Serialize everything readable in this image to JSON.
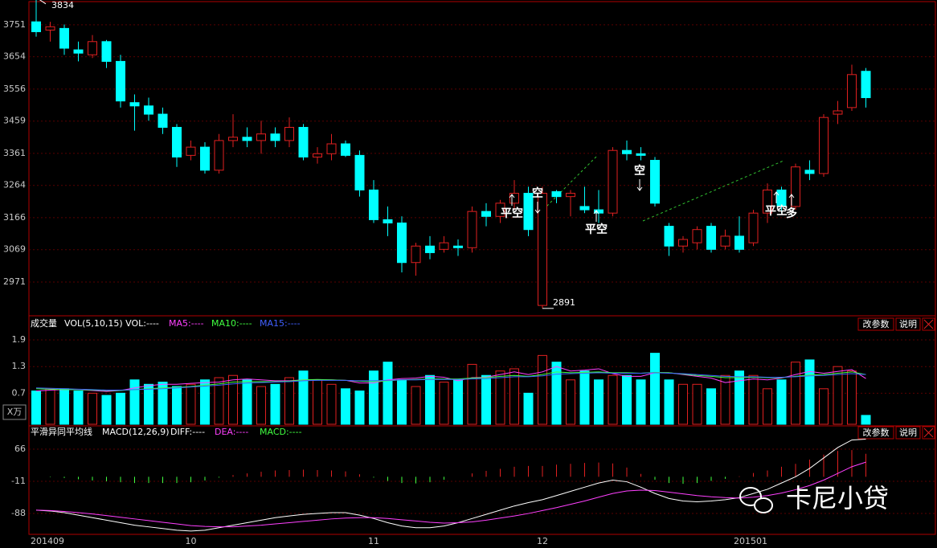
{
  "chart_data": [
    {
      "type": "candlestick",
      "open": [
        3760,
        3735,
        3740,
        3675,
        3660,
        3700,
        3640,
        3515,
        3505,
        3480,
        3440,
        3355,
        3380,
        3310,
        3400,
        3410,
        3400,
        3420,
        3400,
        3440,
        3350,
        3360,
        3390,
        3355,
        3250,
        3160,
        3150,
        3030,
        3080,
        3070,
        3080,
        3075,
        3185,
        3170,
        3210,
        3240,
        2900,
        3245,
        3230,
        3200,
        3190,
        3180,
        3370,
        3360,
        3340,
        3140,
        3080,
        3090,
        3140,
        3080,
        3110,
        3090,
        3180,
        3250,
        3200,
        3310,
        3300,
        3480,
        3500,
        3610
      ],
      "high": [
        3834,
        3760,
        3752,
        3700,
        3720,
        3705,
        3660,
        3540,
        3530,
        3500,
        3450,
        3400,
        3395,
        3420,
        3480,
        3440,
        3460,
        3440,
        3470,
        3450,
        3380,
        3420,
        3400,
        3370,
        3280,
        3200,
        3170,
        3090,
        3110,
        3110,
        3100,
        3200,
        3210,
        3220,
        3280,
        3260,
        3260,
        3250,
        3250,
        3260,
        3250,
        3380,
        3400,
        3380,
        3350,
        3150,
        3110,
        3140,
        3150,
        3130,
        3170,
        3190,
        3270,
        3260,
        3330,
        3340,
        3480,
        3520,
        3630,
        3620
      ],
      "low": [
        3715,
        3700,
        3660,
        3640,
        3650,
        3620,
        3500,
        3430,
        3460,
        3420,
        3320,
        3340,
        3300,
        3300,
        3380,
        3380,
        3360,
        3380,
        3380,
        3340,
        3330,
        3340,
        3350,
        3230,
        3150,
        3110,
        3000,
        2990,
        3040,
        3060,
        3050,
        3060,
        3140,
        3150,
        3190,
        3110,
        2891,
        3210,
        3170,
        3180,
        3150,
        3170,
        3340,
        3340,
        3200,
        3050,
        3060,
        3070,
        3060,
        3070,
        3060,
        3080,
        3150,
        3180,
        3190,
        3280,
        3290,
        3450,
        3490,
        3500
      ],
      "close": [
        3730,
        3745,
        3680,
        3665,
        3700,
        3640,
        3520,
        3505,
        3480,
        3440,
        3350,
        3380,
        3310,
        3400,
        3410,
        3400,
        3420,
        3400,
        3440,
        3350,
        3360,
        3390,
        3355,
        3250,
        3160,
        3150,
        3030,
        3080,
        3060,
        3090,
        3075,
        3185,
        3170,
        3210,
        3240,
        3130,
        3240,
        3230,
        3240,
        3190,
        3180,
        3370,
        3360,
        3355,
        3210,
        3080,
        3100,
        3130,
        3070,
        3110,
        3070,
        3180,
        3250,
        3200,
        3320,
        3300,
        3470,
        3490,
        3600,
        3530
      ],
      "colors": {
        "up": "#e02020",
        "down": "#00ffff"
      },
      "ylim": [
        2871,
        3814
      ],
      "yticks": [
        3751,
        3654,
        3556,
        3459,
        3361,
        3264,
        3166,
        3069,
        2971
      ],
      "grid": true,
      "annotations": [
        "平空",
        "空",
        "平空",
        "空",
        "平空",
        "多"
      ]
    },
    {
      "type": "volume",
      "title": "成交量",
      "subtitle": "VOL(5,10,15) VOL:----",
      "unit": "X万",
      "buttons": [
        "改参数",
        "说明"
      ],
      "values": [
        0.75,
        0.8,
        0.8,
        0.75,
        0.7,
        0.65,
        0.7,
        1.0,
        0.9,
        0.95,
        0.85,
        0.9,
        1.0,
        1.05,
        1.1,
        1.0,
        0.85,
        0.9,
        1.05,
        1.2,
        1.0,
        0.9,
        0.8,
        0.75,
        1.2,
        1.4,
        1.0,
        0.85,
        1.1,
        0.95,
        1.0,
        1.35,
        1.1,
        1.2,
        1.25,
        0.7,
        1.55,
        1.4,
        1.0,
        1.2,
        1.0,
        1.1,
        1.1,
        1.0,
        1.6,
        1.0,
        0.9,
        0.9,
        0.8,
        1.1,
        1.2,
        1.1,
        0.8,
        1.0,
        1.4,
        1.45,
        0.8,
        1.3,
        1.2,
        0.2
      ],
      "series": [
        {
          "name": "MA5:----",
          "color": "#ff40ff",
          "values": [
            0.75,
            0.77,
            0.78,
            0.78,
            0.76,
            0.74,
            0.76,
            0.82,
            0.87,
            0.9,
            0.9,
            0.92,
            0.94,
            0.95,
            1.0,
            1.02,
            1.0,
            0.98,
            0.98,
            1.0,
            1.0,
            1.0,
            0.99,
            0.93,
            0.93,
            1.0,
            1.03,
            1.04,
            1.08,
            1.06,
            0.98,
            1.05,
            1.06,
            1.12,
            1.18,
            1.12,
            1.18,
            1.3,
            1.2,
            1.22,
            1.25,
            1.14,
            1.08,
            1.08,
            1.16,
            1.16,
            1.12,
            1.08,
            1.04,
            0.94,
            0.98,
            1.02,
            1.0,
            1.04,
            1.12,
            1.19,
            1.15,
            1.19,
            1.23,
            1.03
          ]
        },
        {
          "name": "MA10:----",
          "color": "#40ff40",
          "values": [
            0.8,
            0.79,
            0.78,
            0.78,
            0.77,
            0.76,
            0.76,
            0.78,
            0.8,
            0.82,
            0.83,
            0.85,
            0.88,
            0.91,
            0.95,
            0.96,
            0.96,
            0.96,
            0.97,
            1.0,
            1.01,
            1.0,
            0.99,
            0.97,
            0.96,
            0.98,
            1.0,
            1.01,
            1.02,
            1.02,
            1.02,
            1.04,
            1.05,
            1.08,
            1.1,
            1.08,
            1.12,
            1.18,
            1.16,
            1.17,
            1.18,
            1.16,
            1.16,
            1.15,
            1.17,
            1.16,
            1.13,
            1.1,
            1.08,
            1.05,
            1.05,
            1.06,
            1.05,
            1.05,
            1.08,
            1.11,
            1.12,
            1.15,
            1.18,
            1.12
          ]
        },
        {
          "name": "MA15:----",
          "color": "#4060ff",
          "values": [
            0.82,
            0.81,
            0.8,
            0.79,
            0.78,
            0.77,
            0.77,
            0.78,
            0.79,
            0.8,
            0.82,
            0.84,
            0.86,
            0.88,
            0.91,
            0.93,
            0.94,
            0.95,
            0.96,
            0.98,
            0.99,
            0.99,
            0.99,
            0.98,
            0.98,
            0.99,
            1.0,
            1.0,
            1.01,
            1.01,
            1.01,
            1.02,
            1.03,
            1.05,
            1.07,
            1.07,
            1.09,
            1.13,
            1.14,
            1.15,
            1.16,
            1.15,
            1.15,
            1.15,
            1.16,
            1.15,
            1.14,
            1.12,
            1.1,
            1.08,
            1.07,
            1.07,
            1.06,
            1.06,
            1.07,
            1.09,
            1.1,
            1.12,
            1.14,
            1.12
          ]
        }
      ],
      "ylim": [
        0,
        2.1
      ],
      "yticks": [
        1.9,
        1.3,
        0.7
      ]
    },
    {
      "type": "macd",
      "title": "平滑异同平均线",
      "subtitle": "MACD(12,26,9)",
      "buttons": [
        "改参数",
        "说明"
      ],
      "positive_color": "#e02020",
      "series": [
        {
          "name": "DIFF:----",
          "color": "#ffffff",
          "values": [
            -80,
            -82,
            -86,
            -92,
            -98,
            -104,
            -110,
            -116,
            -120,
            -124,
            -128,
            -130,
            -128,
            -122,
            -116,
            -110,
            -104,
            -98,
            -94,
            -90,
            -88,
            -86,
            -86,
            -92,
            -100,
            -110,
            -118,
            -122,
            -122,
            -118,
            -110,
            -100,
            -90,
            -80,
            -70,
            -62,
            -55,
            -45,
            -35,
            -25,
            -15,
            -8,
            -12,
            -25,
            -40,
            -52,
            -58,
            -60,
            -58,
            -55,
            -50,
            -40,
            -30,
            -15,
            0,
            20,
            45,
            70,
            88,
            90
          ]
        },
        {
          "name": "DEA:----",
          "color": "#ff40ff",
          "values": [
            -80,
            -81,
            -83,
            -86,
            -89,
            -93,
            -97,
            -101,
            -105,
            -109,
            -113,
            -117,
            -119,
            -120,
            -120,
            -118,
            -116,
            -113,
            -110,
            -107,
            -104,
            -101,
            -99,
            -98,
            -98,
            -100,
            -103,
            -106,
            -109,
            -111,
            -110,
            -108,
            -104,
            -99,
            -94,
            -88,
            -81,
            -74,
            -66,
            -58,
            -49,
            -40,
            -34,
            -32,
            -33,
            -37,
            -41,
            -45,
            -48,
            -50,
            -51,
            -49,
            -45,
            -39,
            -31,
            -21,
            -8,
            8,
            24,
            35
          ]
        },
        {
          "name": "MACD:----",
          "color": "#40ff40",
          "values": [
            0,
            -1,
            -3,
            -6,
            -9,
            -11,
            -13,
            -15,
            -15,
            -15,
            -15,
            -13,
            -9,
            -2,
            4,
            8,
            12,
            15,
            16,
            17,
            16,
            15,
            13,
            6,
            -2,
            -10,
            -15,
            -16,
            -13,
            -7,
            0,
            8,
            14,
            19,
            24,
            26,
            26,
            29,
            31,
            33,
            34,
            32,
            22,
            7,
            -7,
            -15,
            -17,
            -15,
            -10,
            -5,
            1,
            9,
            15,
            24,
            31,
            41,
            53,
            62,
            64,
            55
          ]
        }
      ],
      "ylim": [
        -136,
        93
      ],
      "yticks": [
        66,
        -11,
        -88
      ],
      "categories": [
        "201409",
        null,
        null,
        null,
        null,
        null,
        null,
        null,
        null,
        null,
        null,
        "10",
        null,
        null,
        null,
        null,
        null,
        null,
        null,
        null,
        null,
        null,
        null,
        null,
        "11",
        null,
        null,
        null,
        null,
        null,
        null,
        null,
        null,
        null,
        null,
        null,
        "12",
        null,
        null,
        null,
        null,
        null,
        null,
        null,
        null,
        null,
        null,
        null,
        null,
        null,
        "201501",
        null,
        null,
        null,
        null,
        null,
        null,
        null,
        null,
        null
      ]
    }
  ],
  "watermark": "卡尼小贷"
}
